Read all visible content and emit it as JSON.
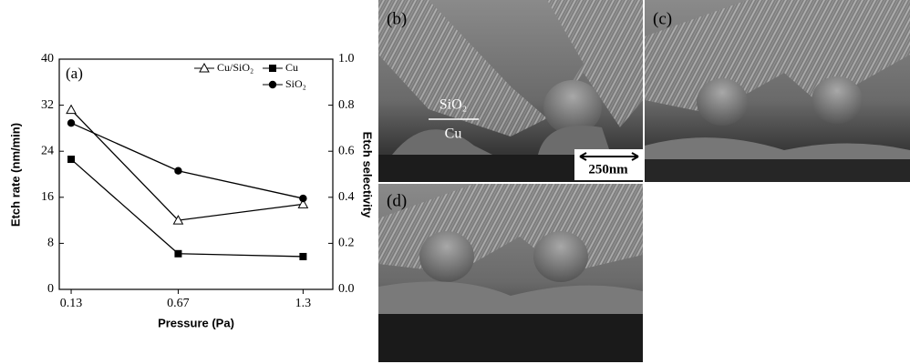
{
  "chart_data": {
    "type": "line",
    "panel_label": "(a)",
    "xlabel": "Pressure (Pa)",
    "ylabel": "Etch rate (nm/min)",
    "y2label": "Etch selectivity",
    "x": [
      0.13,
      0.67,
      1.3
    ],
    "xlim": [
      0.07,
      1.45
    ],
    "xticks": [
      0.13,
      0.67,
      1.3
    ],
    "ylim": [
      0,
      40
    ],
    "yticks": [
      0,
      8,
      16,
      24,
      32,
      40
    ],
    "y2lim": [
      0,
      1
    ],
    "y2ticks": [
      {
        "value": 0,
        "label": "0.0"
      },
      0.2,
      0.4,
      0.6,
      0.8,
      {
        "value": 1,
        "label": "1.0"
      }
    ],
    "legend": "upper right",
    "series": [
      {
        "name": "Cu/SiO₂",
        "color": "#000000",
        "marker": "triangle-open",
        "axis": "y2",
        "values": [
          0.78,
          0.3,
          0.37
        ]
      },
      {
        "name": "Cu",
        "color": "#000000",
        "marker": "square",
        "values": [
          22.6,
          6.2,
          5.7
        ]
      },
      {
        "name": "SiO₂",
        "color": "#000000",
        "marker": "circle",
        "values": [
          28.9,
          20.6,
          15.8
        ]
      }
    ]
  },
  "panels": [
    {
      "label": "(b)",
      "upper_layer": "SiO₂",
      "lower_layer": "Cu",
      "scale_bar": "250nm"
    },
    {
      "label": "(c)"
    },
    {
      "label": "(d)"
    }
  ]
}
